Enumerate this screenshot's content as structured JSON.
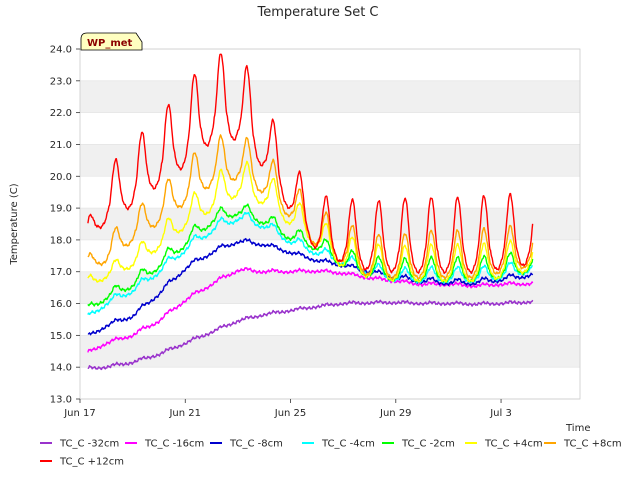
{
  "chart_data": {
    "type": "line",
    "title": "Temperature Set C",
    "xlabel": "Time",
    "ylabel": "Temperature (C)",
    "badge": "WP_met",
    "ylim": [
      13.0,
      24.0
    ],
    "yticks": [
      "13.0",
      "14.0",
      "15.0",
      "16.0",
      "17.0",
      "18.0",
      "19.0",
      "20.0",
      "21.0",
      "22.0",
      "23.0",
      "24.0"
    ],
    "xlim": [
      0,
      19.0
    ],
    "xticks": [
      {
        "day": 0,
        "label": "Jun 17"
      },
      {
        "day": 4,
        "label": "Jun 21"
      },
      {
        "day": 8,
        "label": "Jun 25"
      },
      {
        "day": 12,
        "label": "Jun 29"
      },
      {
        "day": 16,
        "label": "Jul 3"
      }
    ],
    "grid": "horizontal bands",
    "legend_position": "bottom",
    "series": [
      {
        "name": "TC_C -32cm",
        "color": "#9932cc",
        "x": [
          0.3,
          1,
          2,
          3,
          4,
          5,
          6,
          7,
          8,
          9,
          10,
          11,
          12,
          13,
          14,
          15,
          16,
          17.2
        ],
        "y": [
          13.95,
          14.0,
          14.15,
          14.4,
          14.75,
          15.1,
          15.45,
          15.65,
          15.78,
          15.9,
          16.0,
          16.02,
          16.03,
          16.0,
          16.0,
          15.98,
          16.0,
          16.05
        ],
        "amp": [
          0.05,
          0.05,
          0.05,
          0.05,
          0.05,
          0.05,
          0.05,
          0.04,
          0.04,
          0.04,
          0.04,
          0.04,
          0.04,
          0.04,
          0.04,
          0.04,
          0.04,
          0.04
        ]
      },
      {
        "name": "TC_C -16cm",
        "color": "#ff00ff",
        "x": [
          0.3,
          1,
          2,
          3,
          4,
          5,
          6,
          7,
          8,
          9,
          10,
          11,
          12,
          13,
          14,
          15,
          16,
          17.2
        ],
        "y": [
          14.45,
          14.75,
          15.0,
          15.45,
          16.1,
          16.6,
          17.05,
          17.0,
          17.0,
          17.02,
          16.95,
          16.8,
          16.7,
          16.6,
          16.6,
          16.55,
          16.6,
          16.62
        ],
        "amp": [
          0.05,
          0.06,
          0.07,
          0.07,
          0.07,
          0.07,
          0.07,
          0.06,
          0.05,
          0.05,
          0.05,
          0.05,
          0.05,
          0.05,
          0.05,
          0.05,
          0.05,
          0.05
        ]
      },
      {
        "name": "TC_C -8cm",
        "color": "#0000cd",
        "x": [
          0.3,
          1,
          2,
          3,
          4,
          5,
          6,
          7,
          8,
          9,
          10,
          11,
          12,
          13,
          14,
          15,
          16,
          17.2
        ],
        "y": [
          14.95,
          15.3,
          15.6,
          16.3,
          17.1,
          17.6,
          17.95,
          17.85,
          17.6,
          17.35,
          17.2,
          17.0,
          16.8,
          16.7,
          16.65,
          16.65,
          16.75,
          16.9
        ],
        "amp": [
          0.07,
          0.08,
          0.08,
          0.1,
          0.1,
          0.1,
          0.1,
          0.08,
          0.07,
          0.07,
          0.07,
          0.08,
          0.1,
          0.12,
          0.12,
          0.12,
          0.12,
          0.1
        ]
      },
      {
        "name": "TC_C -4cm",
        "color": "#00ffff",
        "x": [
          0.3,
          1,
          2,
          3,
          4,
          5,
          6,
          7,
          8,
          9,
          10,
          11,
          12,
          13,
          14,
          15,
          16,
          17.2
        ],
        "y": [
          15.55,
          16.0,
          16.4,
          17.0,
          17.7,
          18.3,
          18.7,
          18.45,
          17.95,
          17.6,
          17.3,
          17.0,
          16.8,
          16.8,
          16.8,
          16.8,
          16.9,
          17.1
        ],
        "amp": [
          0.1,
          0.15,
          0.15,
          0.18,
          0.2,
          0.22,
          0.25,
          0.22,
          0.2,
          0.2,
          0.25,
          0.3,
          0.3,
          0.35,
          0.35,
          0.35,
          0.35,
          0.3
        ]
      },
      {
        "name": "TC_C -2cm",
        "color": "#00ff00",
        "x": [
          0.3,
          1,
          2,
          3,
          4,
          5,
          6,
          7,
          8,
          9,
          10,
          11,
          12,
          13,
          14,
          15,
          16,
          17.2
        ],
        "y": [
          15.8,
          16.2,
          16.6,
          17.2,
          17.9,
          18.6,
          18.9,
          18.6,
          18.1,
          17.8,
          17.3,
          17.0,
          16.9,
          16.9,
          16.9,
          16.9,
          17.0,
          17.2
        ],
        "amp": [
          0.15,
          0.2,
          0.25,
          0.28,
          0.3,
          0.3,
          0.3,
          0.3,
          0.3,
          0.35,
          0.45,
          0.5,
          0.5,
          0.55,
          0.55,
          0.55,
          0.55,
          0.5
        ]
      },
      {
        "name": "TC_C +4cm",
        "color": "#ffff00",
        "x": [
          0.3,
          1,
          2,
          3,
          4,
          5,
          6,
          7,
          8,
          9,
          10,
          11,
          12,
          13,
          14,
          15,
          16,
          17.2
        ],
        "y": [
          16.6,
          16.9,
          17.3,
          17.9,
          18.6,
          19.2,
          19.7,
          19.4,
          18.7,
          18.0,
          17.4,
          17.1,
          17.0,
          17.0,
          17.0,
          17.0,
          17.1,
          17.3
        ],
        "amp": [
          0.25,
          0.3,
          0.4,
          0.5,
          0.6,
          0.8,
          0.85,
          0.8,
          0.7,
          0.7,
          0.8,
          0.8,
          0.8,
          0.85,
          0.85,
          0.85,
          0.85,
          0.7
        ]
      },
      {
        "name": "TC_C +8cm",
        "color": "#ffa500",
        "x": [
          0.3,
          1,
          2,
          3,
          4,
          5,
          6,
          7,
          8,
          9,
          10,
          11,
          12,
          13,
          14,
          15,
          16,
          17.2
        ],
        "y": [
          17.2,
          17.5,
          18.2,
          18.8,
          19.5,
          20.1,
          20.3,
          19.8,
          19.0,
          18.1,
          17.6,
          17.2,
          17.15,
          17.2,
          17.2,
          17.2,
          17.35,
          17.5
        ],
        "amp": [
          0.3,
          0.6,
          0.7,
          0.8,
          1.0,
          1.1,
          1.1,
          1.0,
          0.9,
          0.9,
          1.0,
          1.0,
          1.0,
          1.1,
          1.1,
          1.1,
          1.1,
          0.9
        ]
      },
      {
        "name": "TC_C +12cm",
        "color": "#ff0000",
        "x": [
          0.3,
          1,
          2,
          3,
          4,
          5,
          6,
          7,
          8,
          9,
          10,
          11,
          12,
          13,
          14,
          15,
          16,
          17.2
        ],
        "y": [
          18.1,
          19.0,
          19.6,
          20.3,
          21.0,
          21.8,
          21.9,
          20.8,
          19.3,
          18.1,
          17.8,
          17.6,
          17.6,
          17.6,
          17.6,
          17.6,
          17.7,
          17.8
        ],
        "amp": [
          0.5,
          1.2,
          1.5,
          1.6,
          1.9,
          2.0,
          2.1,
          1.6,
          1.2,
          1.3,
          1.5,
          1.6,
          1.7,
          1.75,
          1.75,
          1.75,
          1.75,
          1.6
        ]
      }
    ]
  }
}
